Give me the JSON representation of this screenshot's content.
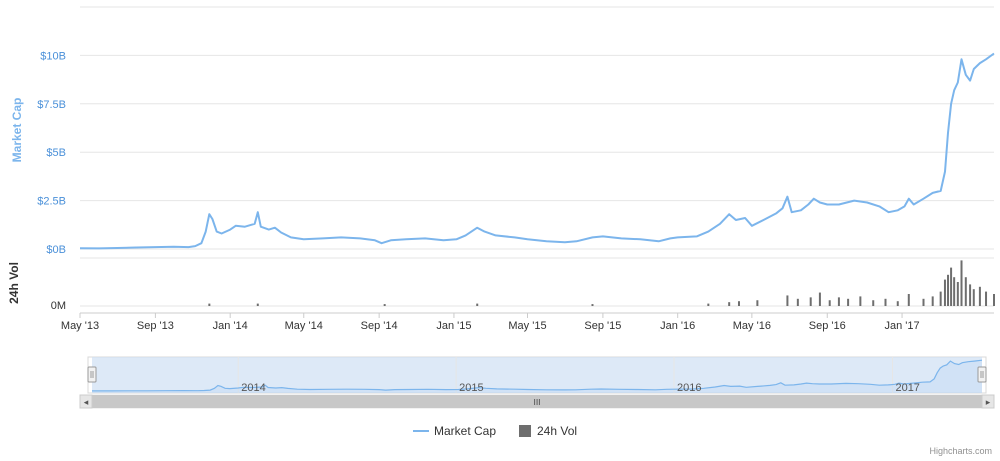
{
  "chart_data": {
    "type": "line",
    "colors": {
      "market_cap": "#7cb5ec",
      "volume": "#6e6e6e",
      "grid": "#e6e6e6",
      "navigator_fill": "#cfe0f4",
      "scrollbar": "#c8c8c8"
    },
    "yaxis_market_cap": {
      "label": "Market Cap",
      "ticks": [
        "$0B",
        "$2.5B",
        "$5B",
        "$7.5B",
        "$10B"
      ],
      "tick_values": [
        0,
        2.5,
        5,
        7.5,
        10
      ],
      "ylim": [
        0,
        12.5
      ]
    },
    "yaxis_volume": {
      "label": "24h Vol",
      "ticks": [
        "0M"
      ]
    },
    "xaxis": {
      "ticks": [
        "May '13",
        "Sep '13",
        "Jan '14",
        "May '14",
        "Sep '14",
        "Jan '15",
        "May '15",
        "Sep '15",
        "Jan '16",
        "May '16",
        "Sep '16",
        "Jan '17"
      ],
      "tick_dates": [
        "2013-05-01",
        "2013-09-01",
        "2014-01-01",
        "2014-05-01",
        "2014-09-01",
        "2015-01-01",
        "2015-05-01",
        "2015-09-01",
        "2016-01-01",
        "2016-05-01",
        "2016-09-01",
        "2017-01-01"
      ],
      "range": [
        "2013-05-01",
        "2017-05-31"
      ]
    },
    "series": [
      {
        "name": "Market Cap",
        "unit": "$B",
        "points": [
          [
            "2013-05-01",
            0.04
          ],
          [
            "2013-06-01",
            0.03
          ],
          [
            "2013-07-01",
            0.05
          ],
          [
            "2013-08-01",
            0.08
          ],
          [
            "2013-09-01",
            0.1
          ],
          [
            "2013-10-01",
            0.12
          ],
          [
            "2013-10-25",
            0.1
          ],
          [
            "2013-11-05",
            0.15
          ],
          [
            "2013-11-15",
            0.3
          ],
          [
            "2013-11-22",
            0.9
          ],
          [
            "2013-11-28",
            1.8
          ],
          [
            "2013-12-03",
            1.55
          ],
          [
            "2013-12-10",
            0.9
          ],
          [
            "2013-12-18",
            0.8
          ],
          [
            "2014-01-01",
            1.0
          ],
          [
            "2014-01-10",
            1.2
          ],
          [
            "2014-01-25",
            1.15
          ],
          [
            "2014-02-10",
            1.3
          ],
          [
            "2014-02-15",
            1.9
          ],
          [
            "2014-02-20",
            1.15
          ],
          [
            "2014-03-05",
            1.0
          ],
          [
            "2014-03-15",
            1.1
          ],
          [
            "2014-03-25",
            0.85
          ],
          [
            "2014-04-10",
            0.6
          ],
          [
            "2014-05-01",
            0.5
          ],
          [
            "2014-06-01",
            0.55
          ],
          [
            "2014-07-01",
            0.6
          ],
          [
            "2014-08-01",
            0.55
          ],
          [
            "2014-08-25",
            0.45
          ],
          [
            "2014-09-05",
            0.3
          ],
          [
            "2014-09-20",
            0.45
          ],
          [
            "2014-10-15",
            0.5
          ],
          [
            "2014-11-15",
            0.55
          ],
          [
            "2014-12-15",
            0.45
          ],
          [
            "2015-01-05",
            0.5
          ],
          [
            "2015-01-20",
            0.7
          ],
          [
            "2015-02-08",
            1.1
          ],
          [
            "2015-02-20",
            0.9
          ],
          [
            "2015-03-10",
            0.7
          ],
          [
            "2015-04-10",
            0.6
          ],
          [
            "2015-05-01",
            0.5
          ],
          [
            "2015-06-01",
            0.4
          ],
          [
            "2015-07-01",
            0.35
          ],
          [
            "2015-07-20",
            0.4
          ],
          [
            "2015-08-15",
            0.6
          ],
          [
            "2015-09-01",
            0.65
          ],
          [
            "2015-10-01",
            0.55
          ],
          [
            "2015-11-01",
            0.5
          ],
          [
            "2015-12-01",
            0.4
          ],
          [
            "2015-12-20",
            0.55
          ],
          [
            "2016-01-01",
            0.6
          ],
          [
            "2016-02-01",
            0.65
          ],
          [
            "2016-02-20",
            0.9
          ],
          [
            "2016-03-10",
            1.3
          ],
          [
            "2016-03-25",
            1.8
          ],
          [
            "2016-04-05",
            1.5
          ],
          [
            "2016-04-20",
            1.6
          ],
          [
            "2016-05-01",
            1.2
          ],
          [
            "2016-05-20",
            1.5
          ],
          [
            "2016-06-10",
            1.85
          ],
          [
            "2016-06-20",
            2.1
          ],
          [
            "2016-06-28",
            2.7
          ],
          [
            "2016-07-05",
            1.9
          ],
          [
            "2016-07-20",
            2.0
          ],
          [
            "2016-08-01",
            2.3
          ],
          [
            "2016-08-10",
            2.6
          ],
          [
            "2016-08-20",
            2.4
          ],
          [
            "2016-09-01",
            2.3
          ],
          [
            "2016-09-20",
            2.3
          ],
          [
            "2016-10-15",
            2.5
          ],
          [
            "2016-11-05",
            2.4
          ],
          [
            "2016-11-25",
            2.2
          ],
          [
            "2016-12-10",
            1.9
          ],
          [
            "2016-12-25",
            2.0
          ],
          [
            "2017-01-05",
            2.2
          ],
          [
            "2017-01-12",
            2.6
          ],
          [
            "2017-01-20",
            2.3
          ],
          [
            "2017-02-05",
            2.6
          ],
          [
            "2017-02-20",
            2.9
          ],
          [
            "2017-03-05",
            3.0
          ],
          [
            "2017-03-12",
            4.0
          ],
          [
            "2017-03-17",
            6.0
          ],
          [
            "2017-03-22",
            7.5
          ],
          [
            "2017-03-27",
            8.2
          ],
          [
            "2017-04-02",
            8.6
          ],
          [
            "2017-04-08",
            9.8
          ],
          [
            "2017-04-15",
            9.0
          ],
          [
            "2017-04-22",
            8.7
          ],
          [
            "2017-04-28",
            9.3
          ],
          [
            "2017-05-08",
            9.6
          ],
          [
            "2017-05-18",
            9.8
          ],
          [
            "2017-05-31",
            10.1
          ]
        ]
      },
      {
        "name": "24h Vol",
        "unit": "relative",
        "points": [
          [
            "2013-11-28",
            0.05
          ],
          [
            "2014-02-15",
            0.05
          ],
          [
            "2014-09-10",
            0.04
          ],
          [
            "2015-02-08",
            0.05
          ],
          [
            "2015-08-15",
            0.04
          ],
          [
            "2016-02-20",
            0.05
          ],
          [
            "2016-03-25",
            0.08
          ],
          [
            "2016-04-10",
            0.1
          ],
          [
            "2016-05-10",
            0.12
          ],
          [
            "2016-06-28",
            0.22
          ],
          [
            "2016-07-15",
            0.15
          ],
          [
            "2016-08-05",
            0.18
          ],
          [
            "2016-08-20",
            0.28
          ],
          [
            "2016-09-05",
            0.12
          ],
          [
            "2016-09-20",
            0.18
          ],
          [
            "2016-10-05",
            0.15
          ],
          [
            "2016-10-25",
            0.2
          ],
          [
            "2016-11-15",
            0.12
          ],
          [
            "2016-12-05",
            0.15
          ],
          [
            "2016-12-25",
            0.1
          ],
          [
            "2017-01-12",
            0.25
          ],
          [
            "2017-02-05",
            0.15
          ],
          [
            "2017-02-20",
            0.2
          ],
          [
            "2017-03-05",
            0.3
          ],
          [
            "2017-03-12",
            0.55
          ],
          [
            "2017-03-17",
            0.65
          ],
          [
            "2017-03-22",
            0.8
          ],
          [
            "2017-03-27",
            0.6
          ],
          [
            "2017-04-02",
            0.5
          ],
          [
            "2017-04-08",
            0.95
          ],
          [
            "2017-04-15",
            0.6
          ],
          [
            "2017-04-22",
            0.45
          ],
          [
            "2017-04-28",
            0.35
          ],
          [
            "2017-05-08",
            0.4
          ],
          [
            "2017-05-18",
            0.3
          ],
          [
            "2017-05-31",
            0.25
          ]
        ]
      }
    ],
    "navigator": {
      "ticks": [
        "2014",
        "2015",
        "2016",
        "2017"
      ],
      "tick_dates": [
        "2014-01-01",
        "2015-01-01",
        "2016-01-01",
        "2017-01-01"
      ],
      "selected_range": [
        "2013-05-01",
        "2017-05-31"
      ]
    },
    "scrollbar": {
      "left_arrow": "◂",
      "right_arrow": "▸",
      "grip": "III"
    },
    "legend": {
      "placement": "bottom-center",
      "items": [
        {
          "label": "Market Cap",
          "symbol": "line",
          "color": "#7cb5ec"
        },
        {
          "label": "24h Vol",
          "symbol": "square",
          "color": "#6e6e6e"
        }
      ]
    },
    "credits": "Highcharts.com"
  }
}
